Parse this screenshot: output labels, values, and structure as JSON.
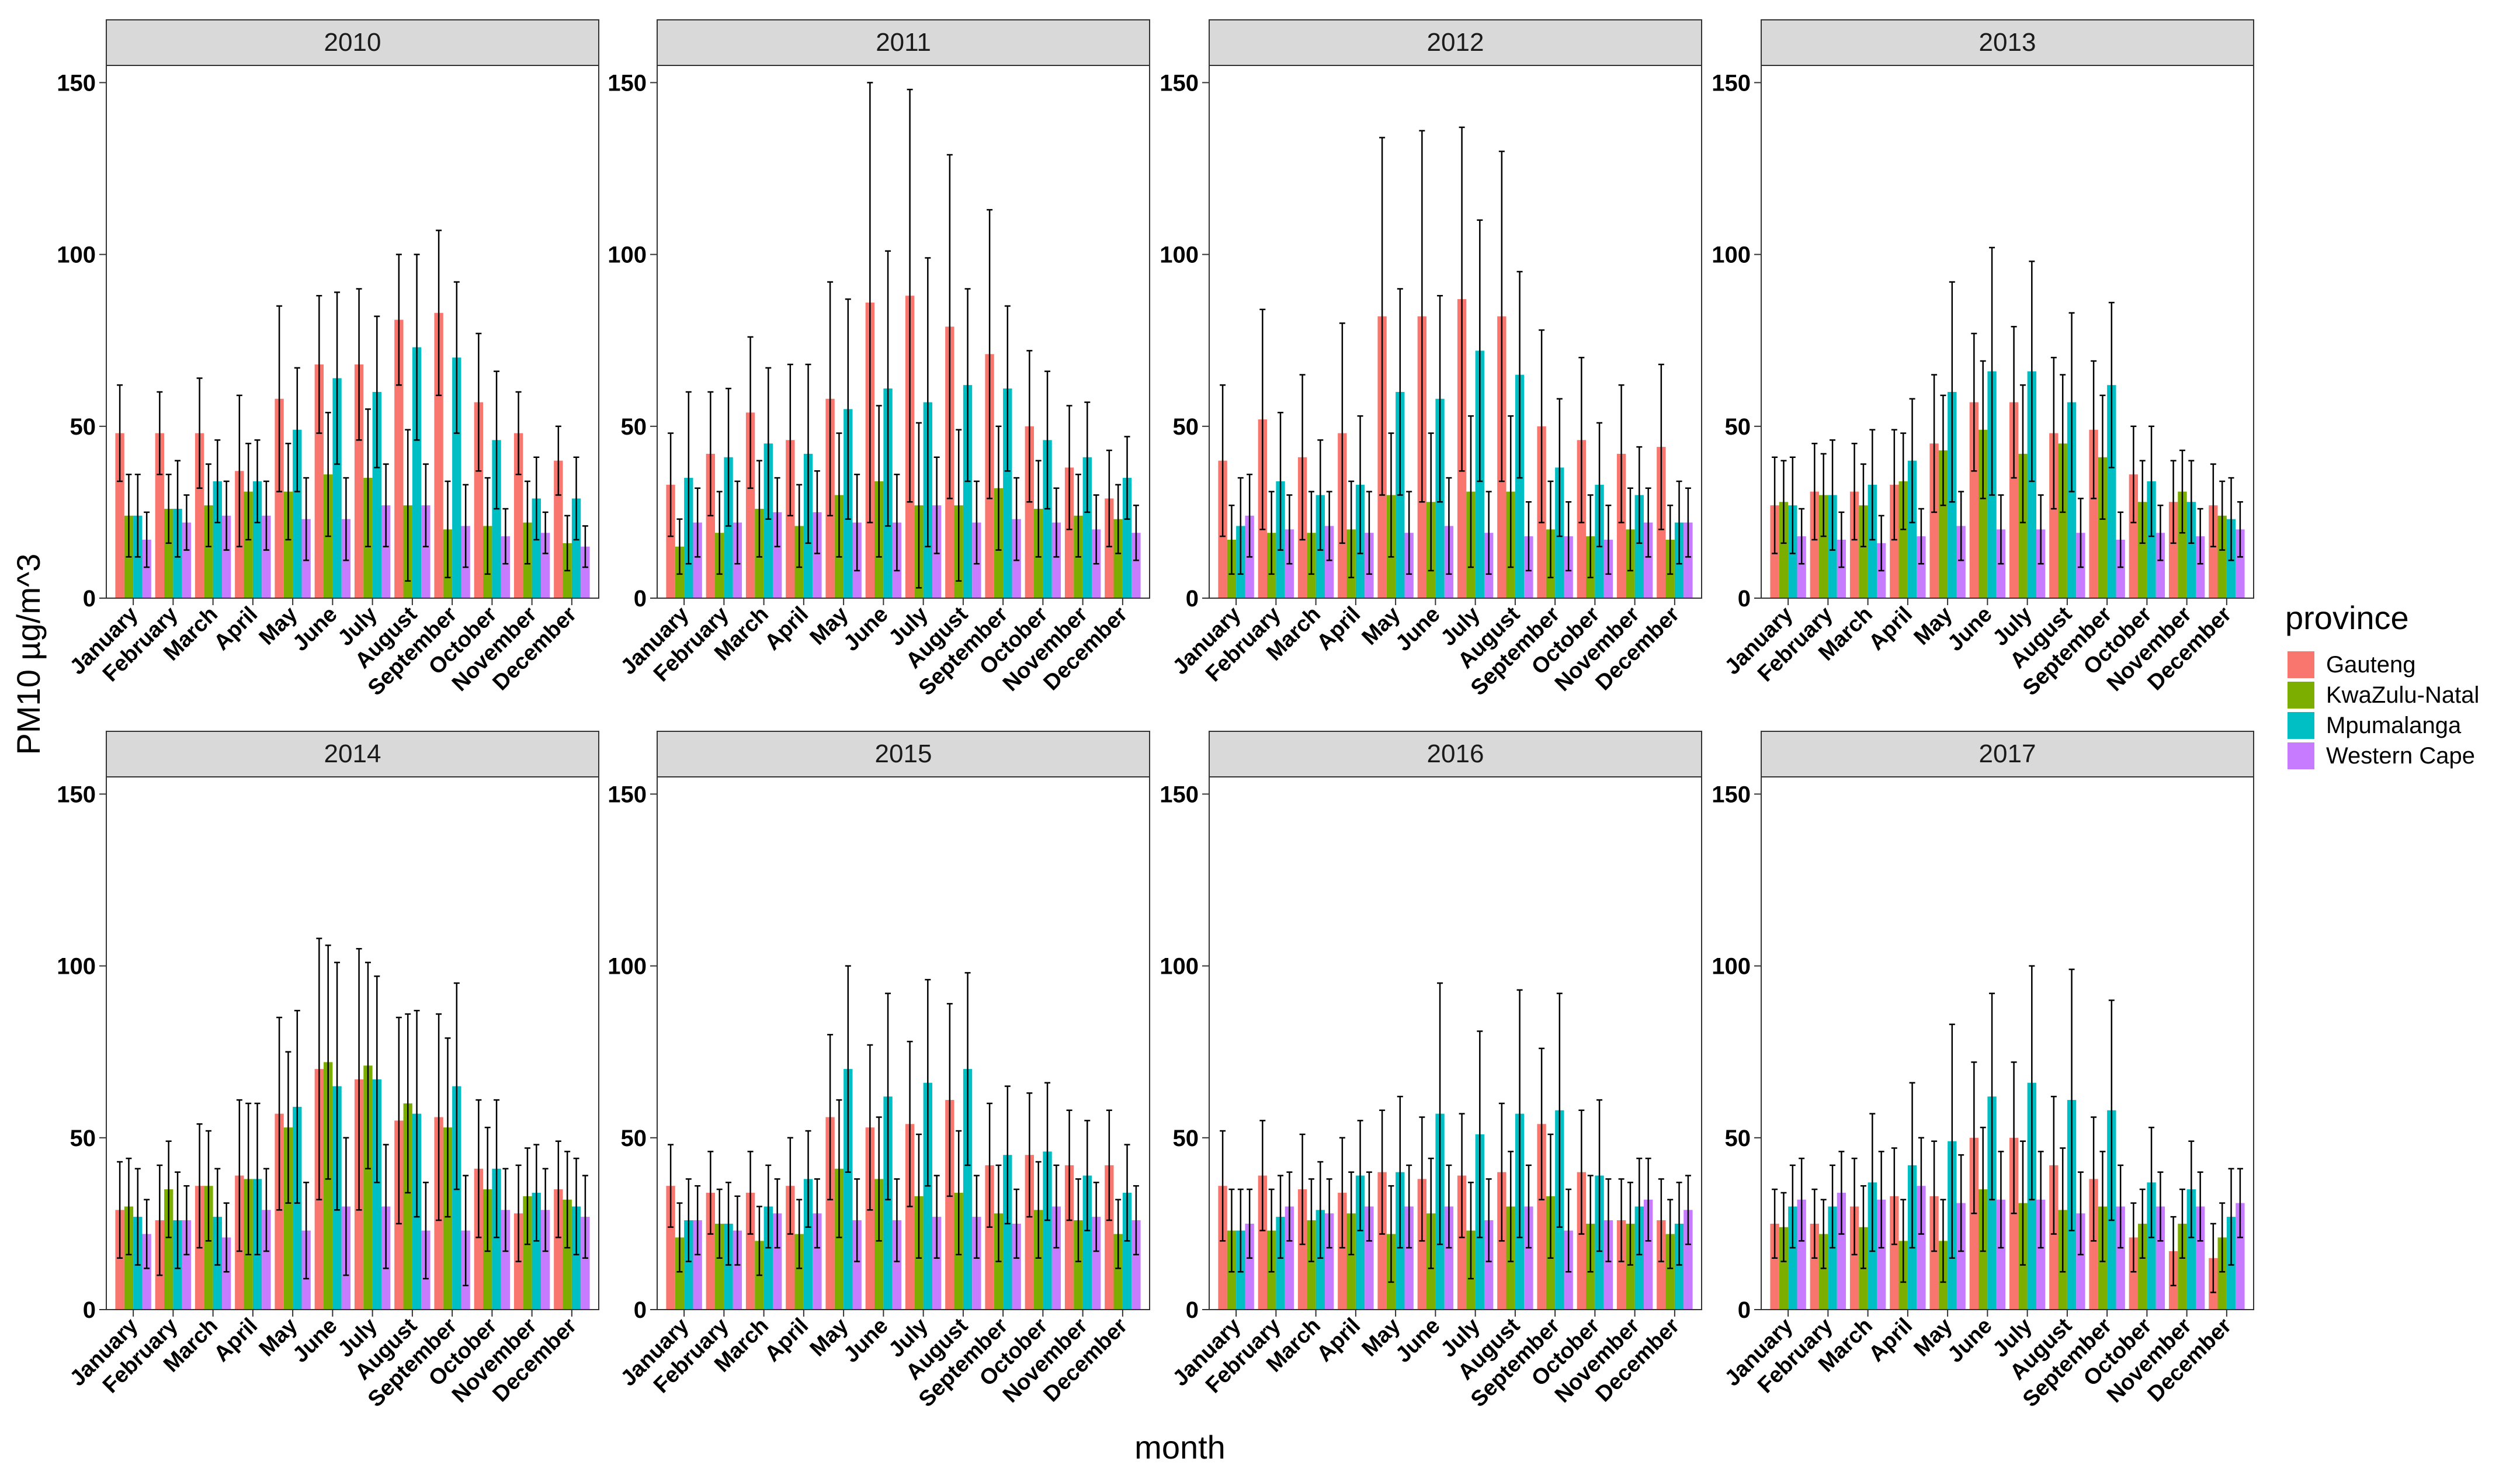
{
  "chart_data": {
    "type": "bar",
    "facet_by": "year",
    "xlabel": "month",
    "ylabel": "PM10 µg/m^3",
    "ylim": [
      0,
      155
    ],
    "yticks": [
      0,
      50,
      100,
      150
    ],
    "grid": false,
    "legend": {
      "title": "province",
      "position": "right",
      "entries": [
        {
          "name": "Gauteng",
          "color": "#F8766D"
        },
        {
          "name": "KwaZulu-Natal",
          "color": "#7CAE00"
        },
        {
          "name": "Mpumalanga",
          "color": "#00BFC4"
        },
        {
          "name": "Western Cape",
          "color": "#C77CFF"
        }
      ]
    },
    "categories": [
      "January",
      "February",
      "March",
      "April",
      "May",
      "June",
      "July",
      "August",
      "September",
      "October",
      "November",
      "December"
    ],
    "series_names": [
      "Gauteng",
      "KwaZulu-Natal",
      "Mpumalanga",
      "Western Cape"
    ],
    "panels": [
      {
        "year": "2010",
        "values": [
          [
            48,
            24,
            24,
            17
          ],
          [
            48,
            26,
            26,
            22
          ],
          [
            48,
            27,
            34,
            24
          ],
          [
            37,
            31,
            34,
            24
          ],
          [
            58,
            31,
            49,
            23
          ],
          [
            68,
            36,
            64,
            23
          ],
          [
            68,
            35,
            60,
            27
          ],
          [
            81,
            27,
            73,
            27
          ],
          [
            83,
            20,
            70,
            21
          ],
          [
            57,
            21,
            46,
            18
          ],
          [
            48,
            22,
            29,
            19
          ],
          [
            40,
            16,
            29,
            15
          ]
        ],
        "errors": [
          [
            14,
            12,
            12,
            8
          ],
          [
            12,
            10,
            14,
            8
          ],
          [
            16,
            12,
            12,
            10
          ],
          [
            22,
            14,
            12,
            10
          ],
          [
            27,
            14,
            18,
            12
          ],
          [
            20,
            18,
            25,
            12
          ],
          [
            22,
            20,
            22,
            12
          ],
          [
            19,
            22,
            27,
            12
          ],
          [
            24,
            14,
            22,
            12
          ],
          [
            20,
            14,
            20,
            8
          ],
          [
            12,
            12,
            12,
            6
          ],
          [
            10,
            8,
            12,
            6
          ]
        ]
      },
      {
        "year": "2011",
        "values": [
          [
            33,
            15,
            35,
            22
          ],
          [
            42,
            19,
            41,
            22
          ],
          [
            54,
            26,
            45,
            25
          ],
          [
            46,
            21,
            42,
            25
          ],
          [
            58,
            30,
            55,
            22
          ],
          [
            86,
            34,
            61,
            22
          ],
          [
            88,
            27,
            57,
            27
          ],
          [
            79,
            27,
            62,
            22
          ],
          [
            71,
            32,
            61,
            23
          ],
          [
            50,
            26,
            46,
            22
          ],
          [
            38,
            24,
            41,
            20
          ],
          [
            29,
            23,
            35,
            19
          ]
        ],
        "errors": [
          [
            15,
            8,
            25,
            10
          ],
          [
            18,
            12,
            20,
            12
          ],
          [
            22,
            14,
            22,
            10
          ],
          [
            22,
            12,
            26,
            12
          ],
          [
            34,
            18,
            32,
            14
          ],
          [
            64,
            22,
            40,
            14
          ],
          [
            60,
            24,
            42,
            14
          ],
          [
            50,
            22,
            28,
            12
          ],
          [
            42,
            18,
            24,
            12
          ],
          [
            22,
            14,
            20,
            10
          ],
          [
            18,
            12,
            16,
            10
          ],
          [
            14,
            10,
            12,
            8
          ]
        ]
      },
      {
        "year": "2012",
        "values": [
          [
            40,
            17,
            21,
            24
          ],
          [
            52,
            19,
            34,
            20
          ],
          [
            41,
            19,
            30,
            21
          ],
          [
            48,
            20,
            33,
            19
          ],
          [
            82,
            30,
            60,
            19
          ],
          [
            82,
            28,
            58,
            21
          ],
          [
            87,
            31,
            72,
            19
          ],
          [
            82,
            31,
            65,
            18
          ],
          [
            50,
            20,
            38,
            18
          ],
          [
            46,
            18,
            33,
            17
          ],
          [
            42,
            20,
            30,
            22
          ],
          [
            44,
            17,
            22,
            22
          ]
        ],
        "errors": [
          [
            22,
            10,
            14,
            12
          ],
          [
            32,
            12,
            20,
            10
          ],
          [
            24,
            12,
            16,
            10
          ],
          [
            32,
            14,
            20,
            12
          ],
          [
            52,
            18,
            30,
            12
          ],
          [
            54,
            20,
            30,
            14
          ],
          [
            50,
            22,
            38,
            12
          ],
          [
            48,
            22,
            30,
            10
          ],
          [
            28,
            14,
            20,
            10
          ],
          [
            24,
            12,
            18,
            10
          ],
          [
            20,
            12,
            14,
            10
          ],
          [
            24,
            10,
            12,
            10
          ]
        ]
      },
      {
        "year": "2013",
        "values": [
          [
            27,
            28,
            27,
            18
          ],
          [
            31,
            30,
            30,
            17
          ],
          [
            31,
            27,
            33,
            16
          ],
          [
            33,
            34,
            40,
            18
          ],
          [
            45,
            43,
            60,
            21
          ],
          [
            57,
            49,
            66,
            20
          ],
          [
            57,
            42,
            66,
            20
          ],
          [
            48,
            45,
            57,
            19
          ],
          [
            49,
            41,
            62,
            17
          ],
          [
            36,
            28,
            34,
            19
          ],
          [
            28,
            31,
            28,
            18
          ],
          [
            27,
            24,
            23,
            20
          ]
        ],
        "errors": [
          [
            14,
            12,
            14,
            8
          ],
          [
            14,
            12,
            16,
            8
          ],
          [
            14,
            12,
            16,
            8
          ],
          [
            16,
            14,
            18,
            8
          ],
          [
            20,
            16,
            32,
            10
          ],
          [
            20,
            20,
            36,
            10
          ],
          [
            22,
            20,
            32,
            10
          ],
          [
            22,
            20,
            26,
            10
          ],
          [
            20,
            18,
            24,
            8
          ],
          [
            14,
            12,
            16,
            8
          ],
          [
            12,
            12,
            12,
            8
          ],
          [
            12,
            10,
            12,
            8
          ]
        ]
      },
      {
        "year": "2014",
        "values": [
          [
            29,
            30,
            27,
            22
          ],
          [
            26,
            35,
            26,
            26
          ],
          [
            36,
            36,
            27,
            21
          ],
          [
            39,
            38,
            38,
            29
          ],
          [
            57,
            53,
            59,
            23
          ],
          [
            70,
            72,
            65,
            30
          ],
          [
            67,
            71,
            67,
            30
          ],
          [
            55,
            60,
            57,
            23
          ],
          [
            56,
            53,
            65,
            23
          ],
          [
            41,
            35,
            41,
            29
          ],
          [
            28,
            33,
            34,
            29
          ],
          [
            35,
            32,
            30,
            27
          ]
        ],
        "errors": [
          [
            14,
            14,
            14,
            10
          ],
          [
            16,
            14,
            14,
            10
          ],
          [
            18,
            16,
            14,
            10
          ],
          [
            22,
            22,
            22,
            12
          ],
          [
            28,
            22,
            28,
            14
          ],
          [
            38,
            34,
            36,
            20
          ],
          [
            38,
            30,
            30,
            18
          ],
          [
            30,
            26,
            30,
            14
          ],
          [
            30,
            26,
            30,
            16
          ],
          [
            20,
            18,
            20,
            12
          ],
          [
            14,
            14,
            14,
            12
          ],
          [
            14,
            14,
            14,
            12
          ]
        ]
      },
      {
        "year": "2015",
        "values": [
          [
            36,
            21,
            26,
            26
          ],
          [
            34,
            25,
            25,
            23
          ],
          [
            34,
            20,
            30,
            28
          ],
          [
            36,
            22,
            38,
            28
          ],
          [
            56,
            41,
            70,
            26
          ],
          [
            53,
            38,
            62,
            26
          ],
          [
            54,
            33,
            66,
            27
          ],
          [
            61,
            34,
            70,
            27
          ],
          [
            42,
            28,
            45,
            25
          ],
          [
            45,
            29,
            46,
            30
          ],
          [
            42,
            26,
            39,
            27
          ],
          [
            42,
            22,
            34,
            26
          ]
        ],
        "errors": [
          [
            12,
            10,
            12,
            10
          ],
          [
            12,
            10,
            12,
            10
          ],
          [
            12,
            10,
            12,
            10
          ],
          [
            14,
            10,
            14,
            10
          ],
          [
            24,
            20,
            30,
            12
          ],
          [
            24,
            18,
            30,
            12
          ],
          [
            24,
            18,
            30,
            12
          ],
          [
            28,
            18,
            28,
            12
          ],
          [
            18,
            14,
            20,
            10
          ],
          [
            18,
            14,
            20,
            12
          ],
          [
            16,
            12,
            16,
            10
          ],
          [
            16,
            10,
            14,
            10
          ]
        ]
      },
      {
        "year": "2016",
        "values": [
          [
            36,
            23,
            23,
            25
          ],
          [
            39,
            23,
            27,
            30
          ],
          [
            35,
            26,
            29,
            28
          ],
          [
            34,
            28,
            39,
            30
          ],
          [
            40,
            22,
            40,
            30
          ],
          [
            38,
            28,
            57,
            30
          ],
          [
            39,
            23,
            51,
            26
          ],
          [
            40,
            30,
            57,
            30
          ],
          [
            54,
            33,
            58,
            23
          ],
          [
            40,
            25,
            39,
            26
          ],
          [
            26,
            25,
            30,
            32
          ],
          [
            26,
            22,
            25,
            29
          ]
        ],
        "errors": [
          [
            16,
            12,
            12,
            10
          ],
          [
            16,
            12,
            12,
            10
          ],
          [
            16,
            12,
            14,
            10
          ],
          [
            16,
            12,
            16,
            10
          ],
          [
            18,
            14,
            22,
            12
          ],
          [
            18,
            16,
            38,
            12
          ],
          [
            18,
            14,
            30,
            12
          ],
          [
            20,
            16,
            36,
            12
          ],
          [
            22,
            18,
            34,
            12
          ],
          [
            18,
            14,
            22,
            12
          ],
          [
            12,
            12,
            14,
            12
          ],
          [
            12,
            10,
            12,
            10
          ]
        ]
      },
      {
        "year": "2017",
        "values": [
          [
            25,
            24,
            30,
            32
          ],
          [
            25,
            22,
            30,
            34
          ],
          [
            30,
            24,
            37,
            32
          ],
          [
            33,
            20,
            42,
            36
          ],
          [
            33,
            20,
            49,
            31
          ],
          [
            50,
            35,
            62,
            32
          ],
          [
            50,
            31,
            66,
            32
          ],
          [
            42,
            29,
            61,
            28
          ],
          [
            38,
            30,
            58,
            30
          ],
          [
            21,
            25,
            37,
            30
          ],
          [
            17,
            25,
            35,
            30
          ],
          [
            15,
            21,
            27,
            31
          ]
        ],
        "errors": [
          [
            10,
            10,
            12,
            12
          ],
          [
            10,
            10,
            12,
            12
          ],
          [
            14,
            12,
            20,
            14
          ],
          [
            14,
            12,
            24,
            14
          ],
          [
            16,
            12,
            34,
            14
          ],
          [
            22,
            18,
            30,
            14
          ],
          [
            22,
            18,
            34,
            14
          ],
          [
            20,
            18,
            38,
            12
          ],
          [
            18,
            16,
            32,
            12
          ],
          [
            10,
            10,
            16,
            10
          ],
          [
            10,
            10,
            14,
            10
          ],
          [
            10,
            10,
            14,
            10
          ]
        ]
      }
    ]
  }
}
